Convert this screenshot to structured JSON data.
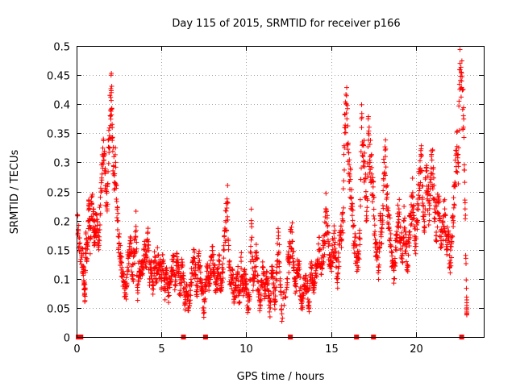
{
  "chart_data": {
    "type": "scatter",
    "title": "Day 115 of 2015, SRMTID for receiver p166",
    "xlabel": "GPS time / hours",
    "ylabel": "SRMTID / TECUs",
    "xlim": [
      0,
      24
    ],
    "ylim": [
      0,
      0.5
    ],
    "xticks": [
      "0",
      "5",
      "10",
      "15",
      "20"
    ],
    "yticks": [
      "0",
      "0.05",
      "0.1",
      "0.15",
      "0.2",
      "0.25",
      "0.3",
      "0.35",
      "0.4",
      "0.45",
      "0.5"
    ],
    "grid": true,
    "marker": "+",
    "color": "#ff0000",
    "series": [
      {
        "name": "SRMTID",
        "points": [
          [
            0.05,
            0.21
          ],
          [
            0.15,
            0.16
          ],
          [
            0.3,
            0.14
          ],
          [
            0.4,
            0.12
          ],
          [
            0.45,
            0.09
          ],
          [
            0.5,
            0.07
          ],
          [
            0.55,
            0.18
          ],
          [
            0.6,
            0.13
          ],
          [
            0.7,
            0.2
          ],
          [
            0.75,
            0.22
          ],
          [
            0.8,
            0.17
          ],
          [
            0.9,
            0.23
          ],
          [
            1.0,
            0.2
          ],
          [
            1.05,
            0.18
          ],
          [
            1.1,
            0.19
          ],
          [
            1.2,
            0.21
          ],
          [
            1.3,
            0.15
          ],
          [
            1.4,
            0.24
          ],
          [
            1.5,
            0.28
          ],
          [
            1.6,
            0.31
          ],
          [
            1.7,
            0.26
          ],
          [
            1.8,
            0.22
          ],
          [
            1.9,
            0.34
          ],
          [
            2.0,
            0.39
          ],
          [
            2.05,
            0.42
          ],
          [
            2.1,
            0.36
          ],
          [
            2.2,
            0.28
          ],
          [
            2.3,
            0.3
          ],
          [
            2.4,
            0.2
          ],
          [
            2.5,
            0.16
          ],
          [
            2.6,
            0.13
          ],
          [
            2.7,
            0.11
          ],
          [
            2.8,
            0.09
          ],
          [
            2.9,
            0.07
          ],
          [
            3.0,
            0.12
          ],
          [
            3.1,
            0.15
          ],
          [
            3.2,
            0.17
          ],
          [
            3.3,
            0.1
          ],
          [
            3.4,
            0.14
          ],
          [
            3.5,
            0.19
          ],
          [
            3.6,
            0.08
          ],
          [
            3.7,
            0.13
          ],
          [
            3.8,
            0.11
          ],
          [
            3.9,
            0.12
          ],
          [
            4.0,
            0.15
          ],
          [
            4.1,
            0.14
          ],
          [
            4.2,
            0.18
          ],
          [
            4.3,
            0.1
          ],
          [
            4.4,
            0.12
          ],
          [
            4.5,
            0.09
          ],
          [
            4.6,
            0.13
          ],
          [
            4.7,
            0.11
          ],
          [
            4.8,
            0.14
          ],
          [
            4.9,
            0.12
          ],
          [
            5.0,
            0.1
          ],
          [
            5.1,
            0.13
          ],
          [
            5.2,
            0.08
          ],
          [
            5.3,
            0.11
          ],
          [
            5.4,
            0.07
          ],
          [
            5.5,
            0.1
          ],
          [
            5.6,
            0.12
          ],
          [
            5.7,
            0.14
          ],
          [
            5.8,
            0.09
          ],
          [
            5.9,
            0.13
          ],
          [
            6.0,
            0.11
          ],
          [
            6.1,
            0.08
          ],
          [
            6.2,
            0.12
          ],
          [
            6.3,
            0.1
          ],
          [
            6.4,
            0.06
          ],
          [
            6.5,
            0.09
          ],
          [
            6.6,
            0.05
          ],
          [
            6.7,
            0.08
          ],
          [
            6.8,
            0.11
          ],
          [
            6.9,
            0.13
          ],
          [
            7.0,
            0.12
          ],
          [
            7.1,
            0.07
          ],
          [
            7.2,
            0.14
          ],
          [
            7.3,
            0.1
          ],
          [
            7.4,
            0.08
          ],
          [
            7.5,
            0.05
          ],
          [
            7.6,
            0.09
          ],
          [
            7.7,
            0.12
          ],
          [
            7.8,
            0.1
          ],
          [
            7.9,
            0.11
          ],
          [
            8.0,
            0.14
          ],
          [
            8.1,
            0.12
          ],
          [
            8.2,
            0.09
          ],
          [
            8.3,
            0.1
          ],
          [
            8.4,
            0.13
          ],
          [
            8.5,
            0.08
          ],
          [
            8.6,
            0.11
          ],
          [
            8.7,
            0.15
          ],
          [
            8.8,
            0.2
          ],
          [
            8.9,
            0.23
          ],
          [
            9.0,
            0.12
          ],
          [
            9.1,
            0.09
          ],
          [
            9.2,
            0.1
          ],
          [
            9.3,
            0.07
          ],
          [
            9.4,
            0.08
          ],
          [
            9.5,
            0.11
          ],
          [
            9.6,
            0.06
          ],
          [
            9.7,
            0.13
          ],
          [
            9.8,
            0.08
          ],
          [
            9.9,
            0.1
          ],
          [
            10.0,
            0.09
          ],
          [
            10.1,
            0.05
          ],
          [
            10.2,
            0.07
          ],
          [
            10.3,
            0.2
          ],
          [
            10.4,
            0.1
          ],
          [
            10.5,
            0.12
          ],
          [
            10.6,
            0.14
          ],
          [
            10.7,
            0.08
          ],
          [
            10.8,
            0.06
          ],
          [
            10.9,
            0.09
          ],
          [
            11.0,
            0.12
          ],
          [
            11.1,
            0.07
          ],
          [
            11.2,
            0.1
          ],
          [
            11.3,
            0.08
          ],
          [
            11.4,
            0.05
          ],
          [
            11.5,
            0.11
          ],
          [
            11.6,
            0.09
          ],
          [
            11.7,
            0.06
          ],
          [
            11.8,
            0.12
          ],
          [
            11.9,
            0.18
          ],
          [
            12.0,
            0.1
          ],
          [
            12.1,
            0.04
          ],
          [
            12.4,
            0.1
          ],
          [
            12.5,
            0.13
          ],
          [
            12.6,
            0.16
          ],
          [
            12.7,
            0.18
          ],
          [
            12.8,
            0.12
          ],
          [
            12.9,
            0.09
          ],
          [
            13.0,
            0.11
          ],
          [
            13.1,
            0.13
          ],
          [
            13.2,
            0.07
          ],
          [
            13.3,
            0.06
          ],
          [
            13.4,
            0.09
          ],
          [
            13.5,
            0.1
          ],
          [
            13.6,
            0.08
          ],
          [
            13.7,
            0.05
          ],
          [
            13.8,
            0.12
          ],
          [
            13.9,
            0.1
          ],
          [
            14.0,
            0.09
          ],
          [
            14.1,
            0.11
          ],
          [
            14.2,
            0.13
          ],
          [
            14.3,
            0.15
          ],
          [
            14.4,
            0.12
          ],
          [
            14.5,
            0.14
          ],
          [
            14.6,
            0.16
          ],
          [
            14.7,
            0.22
          ],
          [
            14.8,
            0.18
          ],
          [
            14.9,
            0.14
          ],
          [
            15.0,
            0.13
          ],
          [
            15.1,
            0.15
          ],
          [
            15.2,
            0.17
          ],
          [
            15.3,
            0.12
          ],
          [
            15.4,
            0.1
          ],
          [
            15.5,
            0.16
          ],
          [
            15.6,
            0.18
          ],
          [
            15.7,
            0.2
          ],
          [
            15.8,
            0.36
          ],
          [
            15.9,
            0.4
          ],
          [
            16.0,
            0.33
          ],
          [
            16.1,
            0.28
          ],
          [
            16.2,
            0.24
          ],
          [
            16.3,
            0.19
          ],
          [
            16.4,
            0.16
          ],
          [
            16.5,
            0.14
          ],
          [
            16.6,
            0.12
          ],
          [
            16.7,
            0.17
          ],
          [
            16.8,
            0.36
          ],
          [
            16.9,
            0.33
          ],
          [
            17.0,
            0.27
          ],
          [
            17.1,
            0.2
          ],
          [
            17.2,
            0.35
          ],
          [
            17.3,
            0.31
          ],
          [
            17.4,
            0.28
          ],
          [
            17.5,
            0.24
          ],
          [
            17.6,
            0.16
          ],
          [
            17.7,
            0.14
          ],
          [
            17.8,
            0.12
          ],
          [
            17.9,
            0.2
          ],
          [
            18.0,
            0.18
          ],
          [
            18.1,
            0.27
          ],
          [
            18.2,
            0.31
          ],
          [
            18.3,
            0.24
          ],
          [
            18.4,
            0.21
          ],
          [
            18.5,
            0.17
          ],
          [
            18.6,
            0.13
          ],
          [
            18.7,
            0.1
          ],
          [
            18.8,
            0.15
          ],
          [
            18.9,
            0.19
          ],
          [
            19.0,
            0.22
          ],
          [
            19.1,
            0.17
          ],
          [
            19.2,
            0.14
          ],
          [
            19.3,
            0.2
          ],
          [
            19.4,
            0.16
          ],
          [
            19.5,
            0.12
          ],
          [
            19.6,
            0.18
          ],
          [
            19.7,
            0.21
          ],
          [
            19.8,
            0.24
          ],
          [
            19.9,
            0.19
          ],
          [
            20.0,
            0.16
          ],
          [
            20.1,
            0.22
          ],
          [
            20.2,
            0.26
          ],
          [
            20.3,
            0.31
          ],
          [
            20.4,
            0.23
          ],
          [
            20.5,
            0.18
          ],
          [
            20.6,
            0.29
          ],
          [
            20.7,
            0.25
          ],
          [
            20.8,
            0.2
          ],
          [
            20.9,
            0.32
          ],
          [
            21.0,
            0.28
          ],
          [
            21.1,
            0.22
          ],
          [
            21.2,
            0.18
          ],
          [
            21.3,
            0.24
          ],
          [
            21.4,
            0.2
          ],
          [
            21.5,
            0.16
          ],
          [
            21.6,
            0.19
          ],
          [
            21.7,
            0.22
          ],
          [
            21.8,
            0.15
          ],
          [
            21.9,
            0.18
          ],
          [
            22.0,
            0.12
          ],
          [
            22.1,
            0.16
          ],
          [
            22.2,
            0.2
          ],
          [
            22.3,
            0.26
          ],
          [
            22.4,
            0.32
          ],
          [
            22.5,
            0.3
          ],
          [
            22.6,
            0.47
          ],
          [
            22.7,
            0.44
          ],
          [
            22.8,
            0.38
          ],
          [
            22.9,
            0.22
          ],
          [
            23.0,
            0.05
          ]
        ]
      }
    ],
    "zero_points_x": [
      0.1,
      0.25,
      6.3,
      7.6,
      12.6,
      16.5,
      17.5,
      22.7
    ]
  }
}
